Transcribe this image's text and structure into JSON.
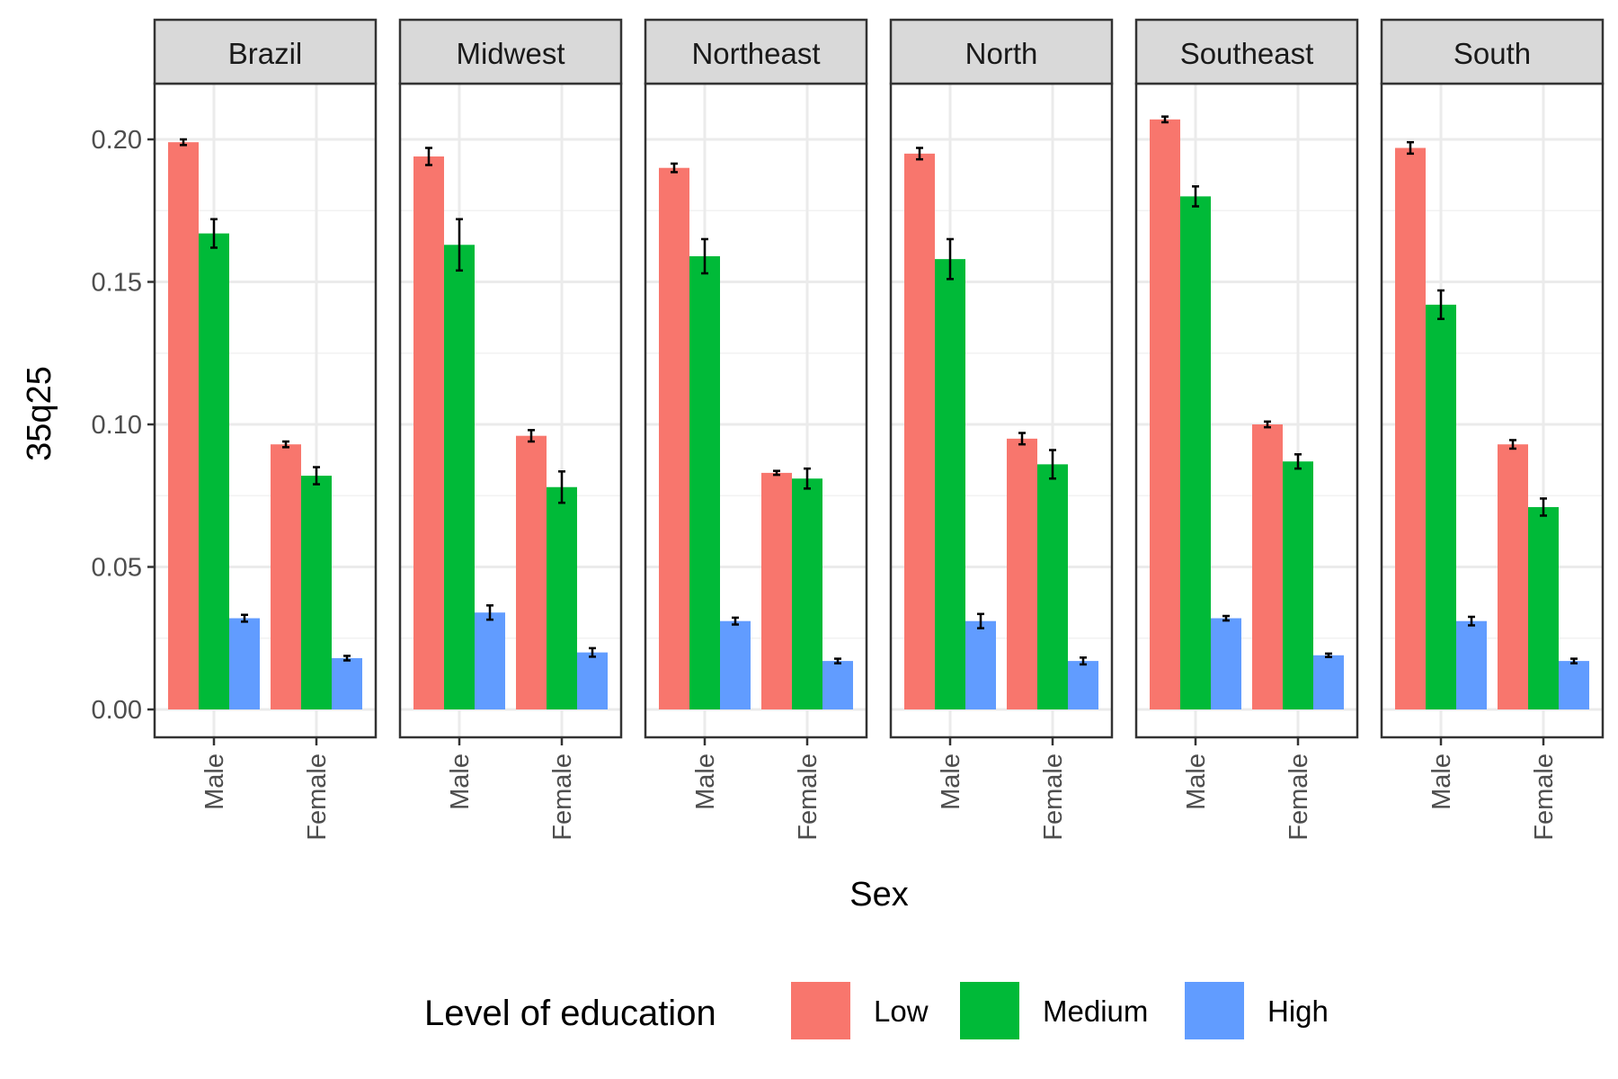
{
  "chart_data": {
    "type": "bar",
    "facet_by": "Region",
    "panels": [
      "Brazil",
      "Midwest",
      "Northeast",
      "North",
      "Southeast",
      "South"
    ],
    "categories": [
      "Male",
      "Female"
    ],
    "xlabel": "Sex",
    "ylabel": "35q25",
    "ylim": [
      0,
      0.22
    ],
    "yticks": [
      "0.00",
      "0.05",
      "0.10",
      "0.15",
      "0.20"
    ],
    "ytick_values": [
      0,
      0.05,
      0.1,
      0.15,
      0.2
    ],
    "grid": true,
    "legend": {
      "title": "Level of education",
      "position": "bottom",
      "entries": [
        "Low",
        "Medium",
        "High"
      ]
    },
    "colors": {
      "Low": "#F8766D",
      "Medium": "#00BA38",
      "High": "#619CFF"
    },
    "series": [
      {
        "name": "Low",
        "values": {
          "Brazil": {
            "Male": [
              0.199,
              0.001
            ],
            "Female": [
              0.093,
              0.001
            ]
          },
          "Midwest": {
            "Male": [
              0.194,
              0.003
            ],
            "Female": [
              0.096,
              0.002
            ]
          },
          "Northeast": {
            "Male": [
              0.19,
              0.0015
            ],
            "Female": [
              0.083,
              0.0007
            ]
          },
          "North": {
            "Male": [
              0.195,
              0.002
            ],
            "Female": [
              0.095,
              0.002
            ]
          },
          "Southeast": {
            "Male": [
              0.207,
              0.001
            ],
            "Female": [
              0.1,
              0.001
            ]
          },
          "South": {
            "Male": [
              0.197,
              0.002
            ],
            "Female": [
              0.093,
              0.0015
            ]
          }
        }
      },
      {
        "name": "Medium",
        "values": {
          "Brazil": {
            "Male": [
              0.167,
              0.005
            ],
            "Female": [
              0.082,
              0.003
            ]
          },
          "Midwest": {
            "Male": [
              0.163,
              0.009
            ],
            "Female": [
              0.078,
              0.0055
            ]
          },
          "Northeast": {
            "Male": [
              0.159,
              0.006
            ],
            "Female": [
              0.081,
              0.0035
            ]
          },
          "North": {
            "Male": [
              0.158,
              0.007
            ],
            "Female": [
              0.086,
              0.005
            ]
          },
          "Southeast": {
            "Male": [
              0.18,
              0.0035
            ],
            "Female": [
              0.087,
              0.0025
            ]
          },
          "South": {
            "Male": [
              0.142,
              0.005
            ],
            "Female": [
              0.071,
              0.003
            ]
          }
        }
      },
      {
        "name": "High",
        "values": {
          "Brazil": {
            "Male": [
              0.032,
              0.0012
            ],
            "Female": [
              0.018,
              0.0008
            ]
          },
          "Midwest": {
            "Male": [
              0.034,
              0.0025
            ],
            "Female": [
              0.02,
              0.0015
            ]
          },
          "Northeast": {
            "Male": [
              0.031,
              0.0012
            ],
            "Female": [
              0.017,
              0.0008
            ]
          },
          "North": {
            "Male": [
              0.031,
              0.0025
            ],
            "Female": [
              0.017,
              0.0012
            ]
          },
          "Southeast": {
            "Male": [
              0.032,
              0.0008
            ],
            "Female": [
              0.019,
              0.0006
            ]
          },
          "South": {
            "Male": [
              0.031,
              0.0015
            ],
            "Female": [
              0.017,
              0.0008
            ]
          }
        }
      }
    ]
  }
}
